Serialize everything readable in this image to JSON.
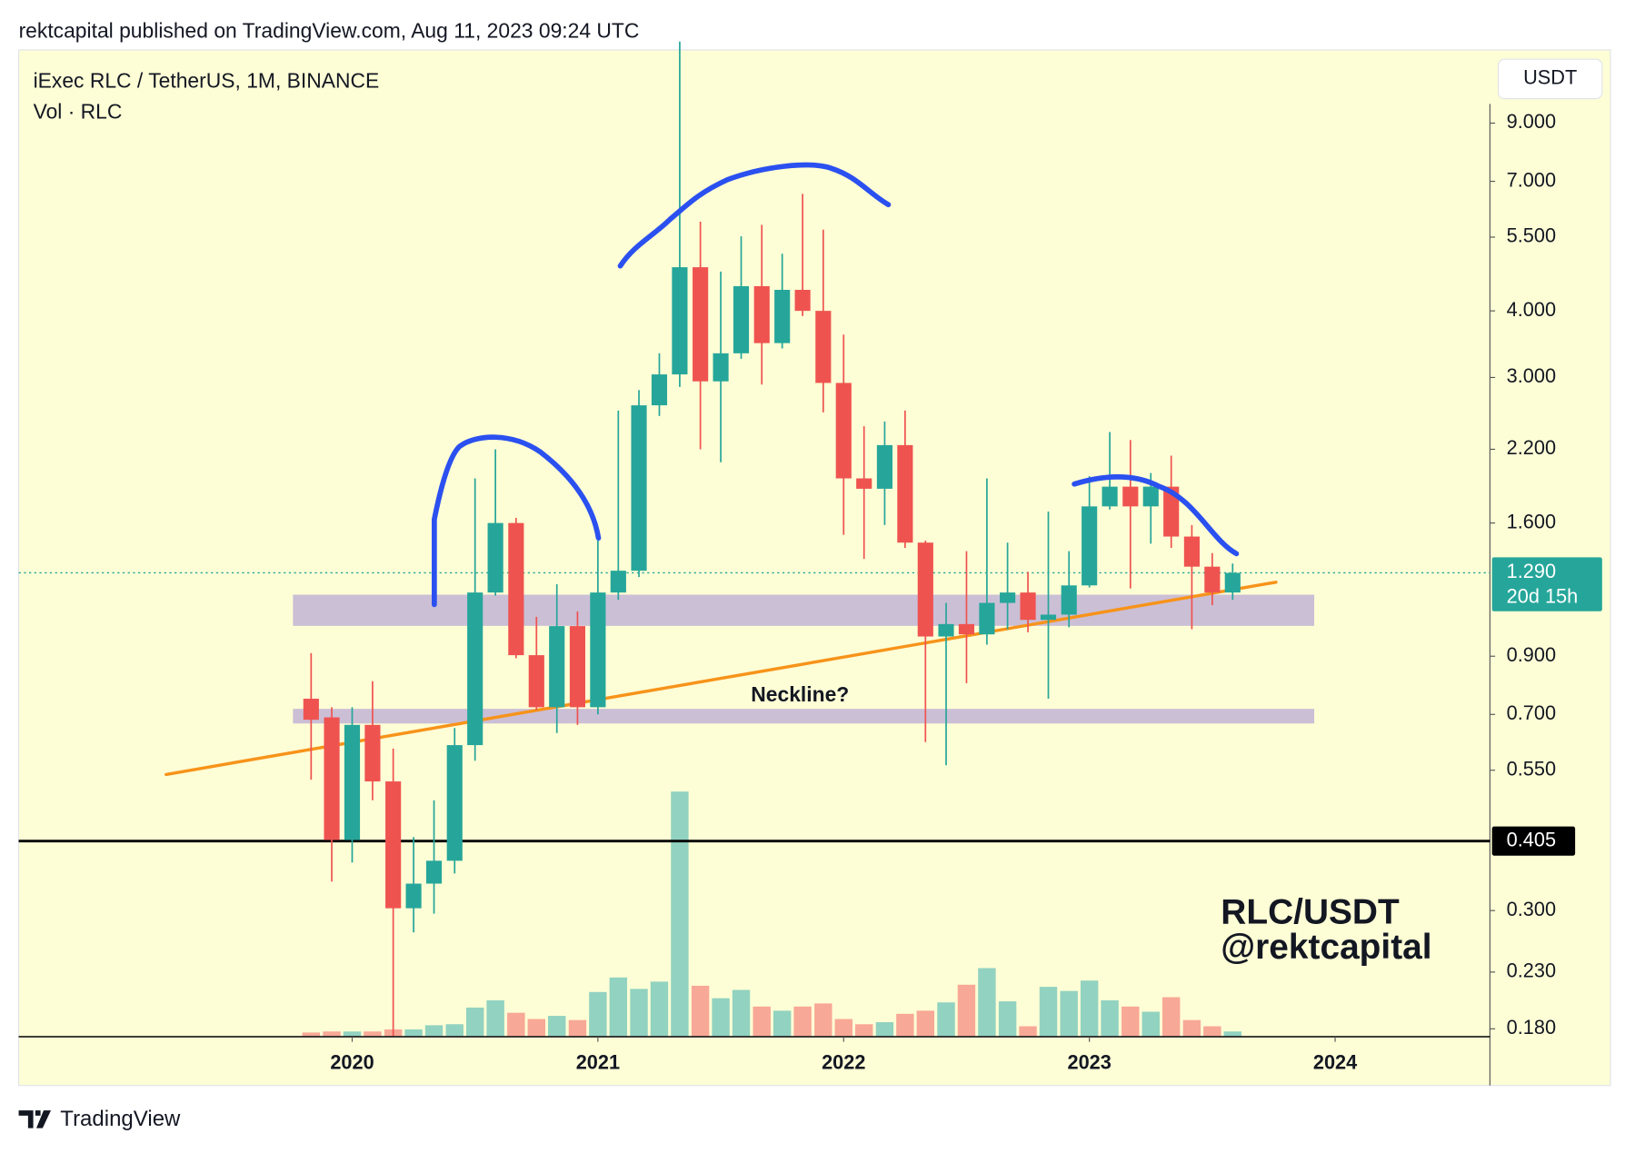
{
  "chart_data": {
    "type": "candlestick",
    "publisher_line": "rektcapital published on TradingView.com, Aug 11, 2023 09:24 UTC",
    "title": "iExec RLC / TetherUS, 1M, BINANCE",
    "subtitle": "Vol · RLC",
    "currency": "USDT",
    "footer": "TradingView",
    "watermark": [
      "RLC/USDT",
      "@rektcapital"
    ],
    "annotations": [
      {
        "text": "Neckline?"
      }
    ],
    "log_scale": true,
    "up_color": "#26a69a",
    "down_color": "#ef5350",
    "volume_up_color": "#92d2c0",
    "volume_down_color": "#f8a896",
    "x": [
      2019.833,
      2019.917,
      2020,
      2020.083,
      2020.167,
      2020.25,
      2020.333,
      2020.417,
      2020.5,
      2020.583,
      2020.667,
      2020.75,
      2020.833,
      2020.917,
      2021,
      2021.083,
      2021.167,
      2021.25,
      2021.333,
      2021.417,
      2021.5,
      2021.583,
      2021.667,
      2021.75,
      2021.833,
      2021.917,
      2022,
      2022.083,
      2022.167,
      2022.25,
      2022.333,
      2022.417,
      2022.5,
      2022.583,
      2022.667,
      2022.75,
      2022.833,
      2022.917,
      2023,
      2023.083,
      2023.167,
      2023.25,
      2023.333,
      2023.417,
      2023.5,
      2023.583
    ],
    "open": [
      0.749,
      0.691,
      0.407,
      0.669,
      0.524,
      0.303,
      0.337,
      0.372,
      0.613,
      1.185,
      1.6,
      0.904,
      0.722,
      1.025,
      0.722,
      1.185,
      1.302,
      2.66,
      3.04,
      4.83,
      2.95,
      3.33,
      4.45,
      3.48,
      4.38,
      4.0,
      2.93,
      1.94,
      1.855,
      2.24,
      1.47,
      0.98,
      1.034,
      0.989,
      1.133,
      1.185,
      1.053,
      1.077,
      1.222,
      1.719,
      1.872,
      1.719,
      1.872,
      1.509,
      1.325,
      1.185
    ],
    "high": [
      0.912,
      0.722,
      0.722,
      0.808,
      0.604,
      0.412,
      0.483,
      0.66,
      1.94,
      2.2,
      1.636,
      1.067,
      1.228,
      1.092,
      1.483,
      2.6,
      2.84,
      3.33,
      12.8,
      5.88,
      4.74,
      5.52,
      5.8,
      5.12,
      6.63,
      5.68,
      3.61,
      2.43,
      2.48,
      2.6,
      1.483,
      1.133,
      1.417,
      1.94,
      1.47,
      1.296,
      1.681,
      1.417,
      1.958,
      2.37,
      2.29,
      1.985,
      2.14,
      1.586,
      1.405,
      1.343
    ],
    "low": [
      0.528,
      0.34,
      0.369,
      0.483,
      0.174,
      0.273,
      0.296,
      0.352,
      0.573,
      1.169,
      0.892,
      0.713,
      0.646,
      0.669,
      0.7,
      1.148,
      1.267,
      2.54,
      2.88,
      2.2,
      2.08,
      3.25,
      2.91,
      3.4,
      3.91,
      2.58,
      1.52,
      1.37,
      1.586,
      1.437,
      0.621,
      0.562,
      0.801,
      0.946,
      1.011,
      0.998,
      0.749,
      1.02,
      1.211,
      1.696,
      1.206,
      1.463,
      1.437,
      1.011,
      1.122,
      1.148
    ],
    "close": [
      0.684,
      0.407,
      0.669,
      0.524,
      0.303,
      0.337,
      0.372,
      0.613,
      1.185,
      1.6,
      0.904,
      0.722,
      1.025,
      0.722,
      1.185,
      1.302,
      2.66,
      3.04,
      4.83,
      2.95,
      3.33,
      4.45,
      3.48,
      4.38,
      4.0,
      2.93,
      1.94,
      1.855,
      2.24,
      1.47,
      0.98,
      1.034,
      0.989,
      1.133,
      1.185,
      1.053,
      1.077,
      1.222,
      1.719,
      1.872,
      1.719,
      1.872,
      1.509,
      1.325,
      1.185,
      1.29
    ],
    "volume": [
      4,
      5,
      5,
      5,
      7,
      7,
      11,
      12,
      28,
      35,
      23,
      17,
      20,
      16,
      43,
      57,
      46,
      53,
      236,
      49,
      37,
      45,
      29,
      25,
      29,
      32,
      17,
      12,
      14,
      22,
      25,
      33,
      50,
      66,
      34,
      10,
      48,
      44,
      54,
      35,
      29,
      24,
      38,
      16,
      10,
      5
    ],
    "xlim": [
      2018.643,
      2024.63
    ],
    "xticks": [
      2020,
      2021,
      2022,
      2023,
      2024
    ],
    "ylim": [
      0.174,
      12.8
    ],
    "yticks": [
      {
        "value": 9,
        "label": "9.000"
      },
      {
        "value": 7,
        "label": "7.000"
      },
      {
        "value": 5.5,
        "label": "5.500"
      },
      {
        "value": 4,
        "label": "4.000"
      },
      {
        "value": 3,
        "label": "3.000"
      },
      {
        "value": 2.2,
        "label": "2.200"
      },
      {
        "value": 1.6,
        "label": "1.600"
      },
      {
        "value": 0.9,
        "label": "0.900"
      },
      {
        "value": 0.7,
        "label": "0.700"
      },
      {
        "value": 0.55,
        "label": "0.550"
      },
      {
        "value": 0.3,
        "label": "0.300"
      },
      {
        "value": 0.23,
        "label": "0.230"
      },
      {
        "value": 0.18,
        "label": "0.180"
      }
    ],
    "price_lines": [
      {
        "value": 1.29,
        "label": "1.290",
        "countdown": "20d 15h",
        "color": "#26a69a",
        "style": "dotted"
      },
      {
        "value": 0.405,
        "label": "0.405",
        "color": "#000000",
        "style": "solid"
      }
    ],
    "zones": [
      {
        "x": [
          2019.759,
          2023.915
        ],
        "from": 1.026,
        "to": 1.174,
        "color": "#cbbfd6"
      },
      {
        "x": [
          2019.759,
          2023.915
        ],
        "from": 0.673,
        "to": 0.717,
        "color": "#cbbfd6"
      }
    ],
    "trendline": {
      "x": [
        2019.243,
        2023.759
      ],
      "y": [
        0.54,
        1.239
      ],
      "color": "#f7931a"
    }
  }
}
